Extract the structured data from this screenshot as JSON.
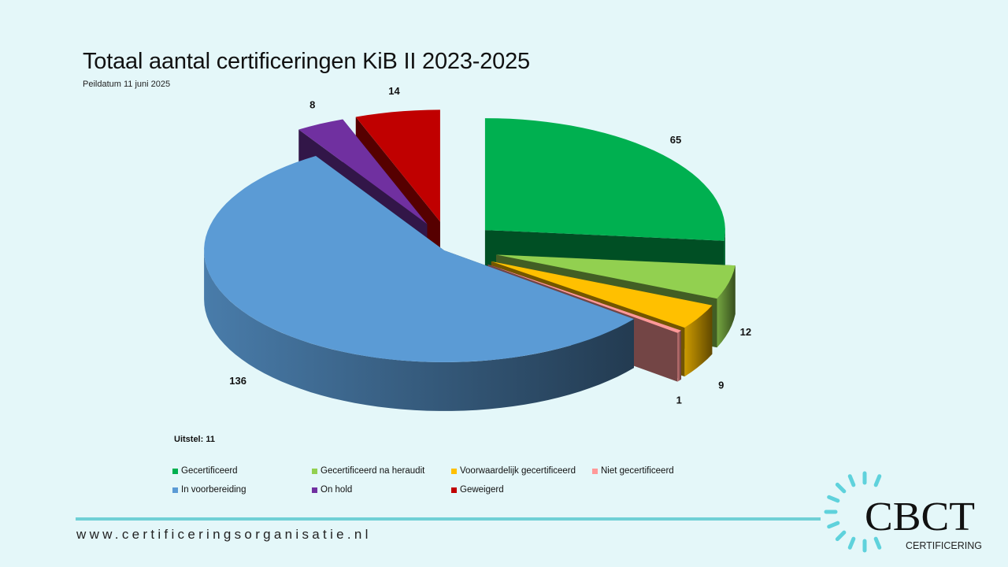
{
  "page": {
    "title": "Totaal aantal certificeringen KiB II 2023-2025",
    "subtitle": "Peildatum 11 juni 2025",
    "note": "Uitstel: 11",
    "footer_url": "www.certificeringsorganisatie.nl",
    "logo": {
      "brand": "CBCT",
      "tagline": "CERTIFICERING",
      "accent_color": "#5fd2dc"
    }
  },
  "chart_data": {
    "type": "pie",
    "style": "3d-exploded",
    "legend_position": "bottom",
    "categories": [
      "Gecertificeerd",
      "Gecertificeerd na heraudit",
      "Voorwaardelijk gecertificeerd",
      "Niet gecertificeerd",
      "In voorbereiding",
      "On hold",
      "Geweigerd"
    ],
    "values": [
      65,
      12,
      9,
      1,
      136,
      8,
      14
    ],
    "colors": [
      "#00b050",
      "#92d050",
      "#ffc000",
      "#ff9999",
      "#5b9bd5",
      "#7030a0",
      "#c00000"
    ],
    "data_labels": [
      "65",
      "12",
      "9",
      "1",
      "136",
      "8",
      "14"
    ]
  }
}
